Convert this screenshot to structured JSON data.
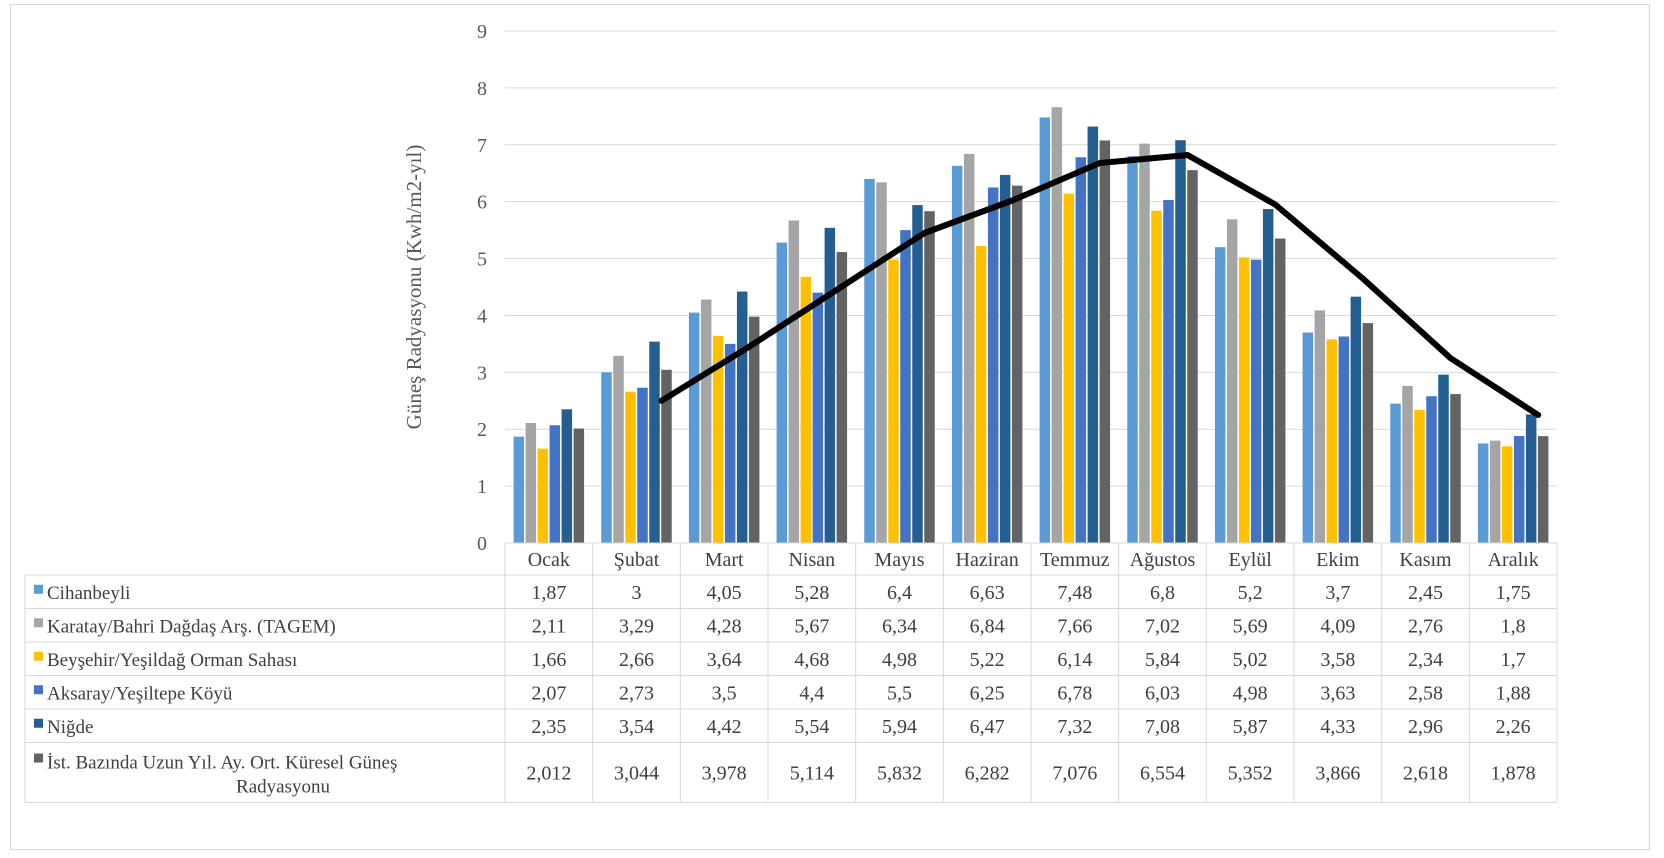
{
  "chart_data": {
    "type": "bar",
    "ylabel": "Güneş Radyasyonu (Kwh/m2-yıl)",
    "ylim": [
      0,
      9
    ],
    "yticks": [
      "0",
      "1",
      "2",
      "3",
      "4",
      "5",
      "6",
      "7",
      "8",
      "9"
    ],
    "grid": true,
    "legend": "data-table-left",
    "categories": [
      "Ocak",
      "Şubat",
      "Mart",
      "Nisan",
      "Mayıs",
      "Haziran",
      "Temmuz",
      "Ağustos",
      "Eylül",
      "Ekim",
      "Kasım",
      "Aralık"
    ],
    "series": [
      {
        "name": "Cihanbeyli",
        "color": "#5b9bd5",
        "values": [
          1.87,
          3,
          4.05,
          5.28,
          6.4,
          6.63,
          7.48,
          6.8,
          5.2,
          3.7,
          2.45,
          1.75
        ],
        "labels": [
          "1,87",
          "3",
          "4,05",
          "5,28",
          "6,4",
          "6,63",
          "7,48",
          "6,8",
          "5,2",
          "3,7",
          "2,45",
          "1,75"
        ]
      },
      {
        "name": "Karatay/Bahri Dağdaş Arş. (TAGEM)",
        "color": "#a5a5a5",
        "values": [
          2.11,
          3.29,
          4.28,
          5.67,
          6.34,
          6.84,
          7.66,
          7.02,
          5.69,
          4.09,
          2.76,
          1.8
        ],
        "labels": [
          "2,11",
          "3,29",
          "4,28",
          "5,67",
          "6,34",
          "6,84",
          "7,66",
          "7,02",
          "5,69",
          "4,09",
          "2,76",
          "1,8"
        ]
      },
      {
        "name": "Beyşehir/Yeşildağ Orman Sahası",
        "color": "#ffc000",
        "values": [
          1.66,
          2.66,
          3.64,
          4.68,
          4.98,
          5.22,
          6.14,
          5.84,
          5.02,
          3.58,
          2.34,
          1.7
        ],
        "labels": [
          "1,66",
          "2,66",
          "3,64",
          "4,68",
          "4,98",
          "5,22",
          "6,14",
          "5,84",
          "5,02",
          "3,58",
          "2,34",
          "1,7"
        ]
      },
      {
        "name": "Aksaray/Yeşiltepe Köyü",
        "color": "#4472c4",
        "values": [
          2.07,
          2.73,
          3.5,
          4.4,
          5.5,
          6.25,
          6.78,
          6.03,
          4.98,
          3.63,
          2.58,
          1.88
        ],
        "labels": [
          "2,07",
          "2,73",
          "3,5",
          "4,4",
          "5,5",
          "6,25",
          "6,78",
          "6,03",
          "4,98",
          "3,63",
          "2,58",
          "1,88"
        ]
      },
      {
        "name": "Niğde",
        "color": "#255e91",
        "values": [
          2.35,
          3.54,
          4.42,
          5.54,
          5.94,
          6.47,
          7.32,
          7.08,
          5.87,
          4.33,
          2.96,
          2.26
        ],
        "labels": [
          "2,35",
          "3,54",
          "4,42",
          "5,54",
          "5,94",
          "6,47",
          "7,32",
          "7,08",
          "5,87",
          "4,33",
          "2,96",
          "2,26"
        ]
      },
      {
        "name": "İst. Bazında Uzun Yıl. Ay. Ort. Küresel Güneş Radyasyonu",
        "color": "#636363",
        "values": [
          2.012,
          3.044,
          3.978,
          5.114,
          5.832,
          6.282,
          7.076,
          6.554,
          5.352,
          3.866,
          2.618,
          1.878
        ],
        "labels": [
          "2,012",
          "3,044",
          "3,978",
          "5,114",
          "5,832",
          "6,282",
          "7,076",
          "6,554",
          "5,352",
          "3,866",
          "2,618",
          "1,878"
        ]
      }
    ],
    "trendline": {
      "type": "line",
      "color": "#000000",
      "x": [
        "Şubat",
        "Mart",
        "Nisan",
        "Mayıs",
        "Haziran",
        "Temmuz",
        "Ağustos",
        "Eylül",
        "Ekim",
        "Kasım",
        "Aralık"
      ],
      "values": [
        2.5,
        3.45,
        4.45,
        5.45,
        6.02,
        6.68,
        6.82,
        5.95,
        4.65,
        3.25,
        2.25
      ]
    }
  }
}
